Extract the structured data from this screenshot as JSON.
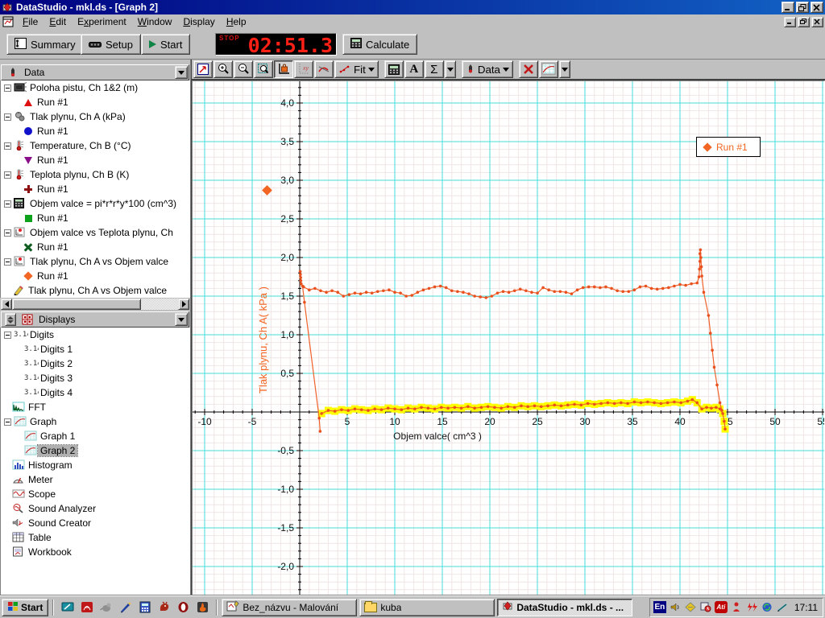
{
  "window": {
    "title": "DataStudio - mkl.ds - [Graph 2]"
  },
  "menu_items": [
    {
      "pre": "",
      "key": "F",
      "post": "ile"
    },
    {
      "pre": "",
      "key": "E",
      "post": "dit"
    },
    {
      "pre": "E",
      "key": "x",
      "post": "periment"
    },
    {
      "pre": "",
      "key": "W",
      "post": "indow"
    },
    {
      "pre": "",
      "key": "D",
      "post": "isplay"
    },
    {
      "pre": "",
      "key": "H",
      "post": "elp"
    }
  ],
  "toolbar": {
    "summary_label": "Summary",
    "setup_label": "Setup",
    "start_label": "Start",
    "stop_label": "STOP",
    "timer_value": "02:51.3",
    "calculate_label": "Calculate"
  },
  "sidebar": {
    "data_panel": {
      "title": "Data",
      "rows": [
        {
          "kind": "parent",
          "icon": "motion-sensor",
          "label": "Poloha pistu, Ch 1&2 (m)"
        },
        {
          "kind": "run",
          "marker": "tri-red",
          "label": "Run #1"
        },
        {
          "kind": "parent",
          "icon": "pressure-sensor",
          "label": "Tlak plynu, Ch A (kPa)"
        },
        {
          "kind": "run",
          "marker": "circle-blue",
          "label": "Run #1"
        },
        {
          "kind": "parent",
          "icon": "thermometer",
          "label": "Temperature, Ch B (°C)"
        },
        {
          "kind": "run",
          "marker": "tri-purple",
          "label": "Run #1"
        },
        {
          "kind": "parent",
          "icon": "thermometer",
          "label": "Teplota plynu, Ch B (K)"
        },
        {
          "kind": "run",
          "marker": "plus-darkred",
          "label": "Run #1"
        },
        {
          "kind": "parent",
          "icon": "calculator",
          "label": "Objem valce = pi*r*r*y*100 (cm^3)"
        },
        {
          "kind": "run",
          "marker": "sq-green",
          "label": "Run #1"
        },
        {
          "kind": "parent",
          "icon": "xy-plot",
          "label": "Objem valce vs Teplota plynu, Ch"
        },
        {
          "kind": "run",
          "marker": "x-darkgreen",
          "label": "Run #1"
        },
        {
          "kind": "parent",
          "icon": "xy-plot",
          "label": "Tlak plynu, Ch A vs Objem valce"
        },
        {
          "kind": "run",
          "marker": "diamond-orange",
          "label": "Run #1"
        },
        {
          "kind": "leaf",
          "icon": "pencil",
          "label": "Tlak plynu, Ch A vs Objem valce"
        }
      ]
    },
    "displays_panel": {
      "title": "Displays",
      "rows": [
        {
          "kind": "parent",
          "icon": "digits",
          "label": "Digits"
        },
        {
          "kind": "child",
          "icon": "digits",
          "label": "Digits 1"
        },
        {
          "kind": "child",
          "icon": "digits",
          "label": "Digits 2"
        },
        {
          "kind": "child",
          "icon": "digits",
          "label": "Digits 3"
        },
        {
          "kind": "child",
          "icon": "digits",
          "label": "Digits 4"
        },
        {
          "kind": "leaf",
          "icon": "fft",
          "label": "FFT"
        },
        {
          "kind": "parent",
          "icon": "graph-display",
          "label": "Graph"
        },
        {
          "kind": "child",
          "icon": "graph-display",
          "label": "Graph 1"
        },
        {
          "kind": "child",
          "icon": "graph-display",
          "label": "Graph 2",
          "selected": true
        },
        {
          "kind": "leaf",
          "icon": "histogram",
          "label": "Histogram"
        },
        {
          "kind": "leaf",
          "icon": "meter",
          "label": "Meter"
        },
        {
          "kind": "leaf",
          "icon": "scope",
          "label": "Scope"
        },
        {
          "kind": "leaf",
          "icon": "sound-analyzer",
          "label": "Sound Analyzer"
        },
        {
          "kind": "leaf",
          "icon": "sound-creator",
          "label": "Sound Creator"
        },
        {
          "kind": "leaf",
          "icon": "table",
          "label": "Table"
        },
        {
          "kind": "leaf",
          "icon": "workbook",
          "label": "Workbook"
        }
      ]
    }
  },
  "graph_toolbar": {
    "fit_label": "Fit",
    "data_label": "Data"
  },
  "chart_data": {
    "type": "scatter",
    "xlabel": "Objem valce( cm^3 )",
    "ylabel": "Tlak plynu, Ch A( kPa )",
    "xlim": [
      -11.3,
      55.4
    ],
    "ylim": [
      -2.38,
      4.28
    ],
    "grid": true,
    "legend": {
      "label": "Run #1",
      "position": "top-right"
    },
    "colors": {
      "series": "#f06028",
      "dots": "#e8501e",
      "selection": "#ffff00",
      "major_grid": "#45dede",
      "minor_grid": "#f1e5e5"
    },
    "x_ticks": [
      -10,
      -5,
      5,
      10,
      15,
      20,
      25,
      30,
      35,
      40,
      45,
      50,
      55
    ],
    "x_tick_labels": [
      "-10",
      "-5",
      "5",
      "10",
      "15",
      "20",
      "25",
      "30",
      "35",
      "40",
      "45",
      "50",
      "55"
    ],
    "y_ticks": [
      4.0,
      3.5,
      3.0,
      2.5,
      2.0,
      1.5,
      1.0,
      0.5,
      -0.5,
      -1.0,
      -1.5,
      -2.0
    ],
    "y_tick_labels": [
      "4,0",
      "3,5",
      "3,0",
      "2,5",
      "2,0",
      "1,5",
      "1,0",
      "0,5",
      "-0,5",
      "-1,0",
      "-1,5",
      "-2,0"
    ],
    "series": [
      {
        "name": "run1-start-drop",
        "points": [
          [
            0.05,
            1.82
          ],
          [
            0.07,
            1.78
          ],
          [
            0.1,
            1.74
          ],
          [
            0.12,
            1.7
          ],
          [
            0.15,
            1.66
          ],
          [
            0.3,
            1.63
          ],
          [
            0.5,
            1.42
          ],
          [
            2.05,
            -0.08
          ],
          [
            2.15,
            -0.25
          ]
        ]
      },
      {
        "name": "run1-upper-branch",
        "points": [
          [
            0.4,
            1.62
          ],
          [
            1.0,
            1.58
          ],
          [
            1.6,
            1.6
          ],
          [
            2.2,
            1.57
          ],
          [
            2.8,
            1.55
          ],
          [
            3.4,
            1.57
          ],
          [
            4.0,
            1.55
          ],
          [
            4.6,
            1.5
          ],
          [
            5.2,
            1.52
          ],
          [
            5.8,
            1.54
          ],
          [
            6.4,
            1.53
          ],
          [
            7.0,
            1.55
          ],
          [
            7.6,
            1.54
          ],
          [
            8.2,
            1.56
          ],
          [
            8.8,
            1.57
          ],
          [
            9.4,
            1.58
          ],
          [
            10.0,
            1.55
          ],
          [
            10.6,
            1.54
          ],
          [
            11.2,
            1.5
          ],
          [
            11.8,
            1.51
          ],
          [
            12.4,
            1.55
          ],
          [
            13.0,
            1.58
          ],
          [
            13.6,
            1.6
          ],
          [
            14.2,
            1.62
          ],
          [
            14.8,
            1.63
          ],
          [
            15.4,
            1.61
          ],
          [
            16.0,
            1.57
          ],
          [
            16.6,
            1.56
          ],
          [
            17.2,
            1.55
          ],
          [
            17.8,
            1.53
          ],
          [
            18.4,
            1.5
          ],
          [
            19.0,
            1.49
          ],
          [
            19.6,
            1.48
          ],
          [
            20.2,
            1.5
          ],
          [
            20.8,
            1.54
          ],
          [
            21.4,
            1.56
          ],
          [
            22.0,
            1.55
          ],
          [
            22.6,
            1.57
          ],
          [
            23.2,
            1.59
          ],
          [
            23.8,
            1.57
          ],
          [
            24.4,
            1.55
          ],
          [
            25.0,
            1.54
          ],
          [
            25.6,
            1.61
          ],
          [
            26.2,
            1.58
          ],
          [
            26.8,
            1.56
          ],
          [
            27.4,
            1.56
          ],
          [
            28.0,
            1.55
          ],
          [
            28.6,
            1.53
          ],
          [
            29.2,
            1.58
          ],
          [
            29.8,
            1.61
          ],
          [
            30.4,
            1.62
          ],
          [
            31.0,
            1.62
          ],
          [
            31.6,
            1.61
          ],
          [
            32.2,
            1.62
          ],
          [
            32.8,
            1.6
          ],
          [
            33.4,
            1.57
          ],
          [
            34.0,
            1.56
          ],
          [
            34.6,
            1.56
          ],
          [
            35.2,
            1.58
          ],
          [
            35.8,
            1.62
          ],
          [
            36.4,
            1.63
          ],
          [
            37.0,
            1.6
          ],
          [
            37.6,
            1.59
          ],
          [
            38.2,
            1.6
          ],
          [
            38.8,
            1.61
          ],
          [
            39.4,
            1.63
          ],
          [
            40.0,
            1.65
          ],
          [
            40.6,
            1.64
          ],
          [
            41.2,
            1.66
          ],
          [
            41.8,
            1.67
          ],
          [
            42.0,
            1.75
          ],
          [
            42.05,
            1.85
          ],
          [
            42.1,
            1.95
          ],
          [
            42.1,
            2.05
          ],
          [
            42.15,
            2.1
          ],
          [
            42.2,
            2.0
          ],
          [
            42.25,
            1.88
          ],
          [
            42.3,
            1.76
          ],
          [
            42.5,
            1.55
          ],
          [
            43.0,
            1.25
          ],
          [
            43.2,
            1.02
          ],
          [
            43.4,
            0.8
          ],
          [
            43.6,
            0.58
          ],
          [
            43.9,
            0.35
          ],
          [
            44.2,
            0.12
          ],
          [
            44.4,
            0.02
          ]
        ]
      },
      {
        "name": "run1-lower-branch-selected",
        "highlighted": true,
        "points": [
          [
            2.3,
            -0.02
          ],
          [
            3.0,
            0.02
          ],
          [
            3.7,
            0.01
          ],
          [
            4.4,
            0.03
          ],
          [
            5.1,
            0.02
          ],
          [
            5.8,
            0.04
          ],
          [
            6.5,
            0.03
          ],
          [
            7.2,
            0.02
          ],
          [
            7.9,
            0.04
          ],
          [
            8.6,
            0.03
          ],
          [
            9.3,
            0.05
          ],
          [
            10.0,
            0.04
          ],
          [
            10.7,
            0.03
          ],
          [
            11.4,
            0.05
          ],
          [
            12.1,
            0.04
          ],
          [
            12.8,
            0.06
          ],
          [
            13.5,
            0.05
          ],
          [
            14.2,
            0.04
          ],
          [
            14.9,
            0.06
          ],
          [
            15.6,
            0.05
          ],
          [
            16.3,
            0.06
          ],
          [
            17.0,
            0.05
          ],
          [
            17.7,
            0.07
          ],
          [
            18.4,
            0.05
          ],
          [
            19.1,
            0.06
          ],
          [
            19.8,
            0.07
          ],
          [
            20.5,
            0.06
          ],
          [
            21.2,
            0.05
          ],
          [
            21.9,
            0.07
          ],
          [
            22.6,
            0.06
          ],
          [
            23.3,
            0.08
          ],
          [
            24.0,
            0.07
          ],
          [
            24.7,
            0.08
          ],
          [
            25.4,
            0.07
          ],
          [
            26.1,
            0.08
          ],
          [
            26.8,
            0.09
          ],
          [
            27.5,
            0.08
          ],
          [
            28.2,
            0.09
          ],
          [
            28.9,
            0.1
          ],
          [
            29.6,
            0.09
          ],
          [
            30.3,
            0.11
          ],
          [
            31.0,
            0.1
          ],
          [
            31.7,
            0.11
          ],
          [
            32.4,
            0.12
          ],
          [
            33.1,
            0.11
          ],
          [
            33.8,
            0.12
          ],
          [
            34.5,
            0.11
          ],
          [
            35.2,
            0.13
          ],
          [
            35.9,
            0.12
          ],
          [
            36.6,
            0.13
          ],
          [
            37.3,
            0.12
          ],
          [
            38.0,
            0.11
          ],
          [
            38.7,
            0.12
          ],
          [
            39.4,
            0.13
          ],
          [
            40.1,
            0.12
          ],
          [
            40.8,
            0.14
          ],
          [
            41.3,
            0.16
          ],
          [
            41.8,
            0.12
          ],
          [
            42.3,
            0.04
          ],
          [
            42.8,
            0.06
          ],
          [
            43.3,
            0.05
          ],
          [
            43.8,
            0.06
          ],
          [
            44.2,
            0.04
          ],
          [
            44.5,
            -0.02
          ],
          [
            44.65,
            -0.12
          ],
          [
            44.75,
            -0.22
          ]
        ]
      }
    ]
  },
  "taskbar": {
    "start_label": "Start",
    "quick_launch_icons": [
      "show-desktop",
      "acrobat",
      "bird",
      "pen",
      "calculator",
      "dragon",
      "opera",
      "winamp"
    ],
    "tasks": [
      {
        "icon": "paint",
        "label": "Bez_názvu - Malování"
      },
      {
        "icon": "folder",
        "label": "kuba"
      },
      {
        "icon": "datastudio",
        "label": "DataStudio - mkl.ds - ...",
        "active": true
      }
    ],
    "tray": {
      "lang": "En",
      "ati_label": "Ati",
      "clock": "17:11"
    }
  }
}
